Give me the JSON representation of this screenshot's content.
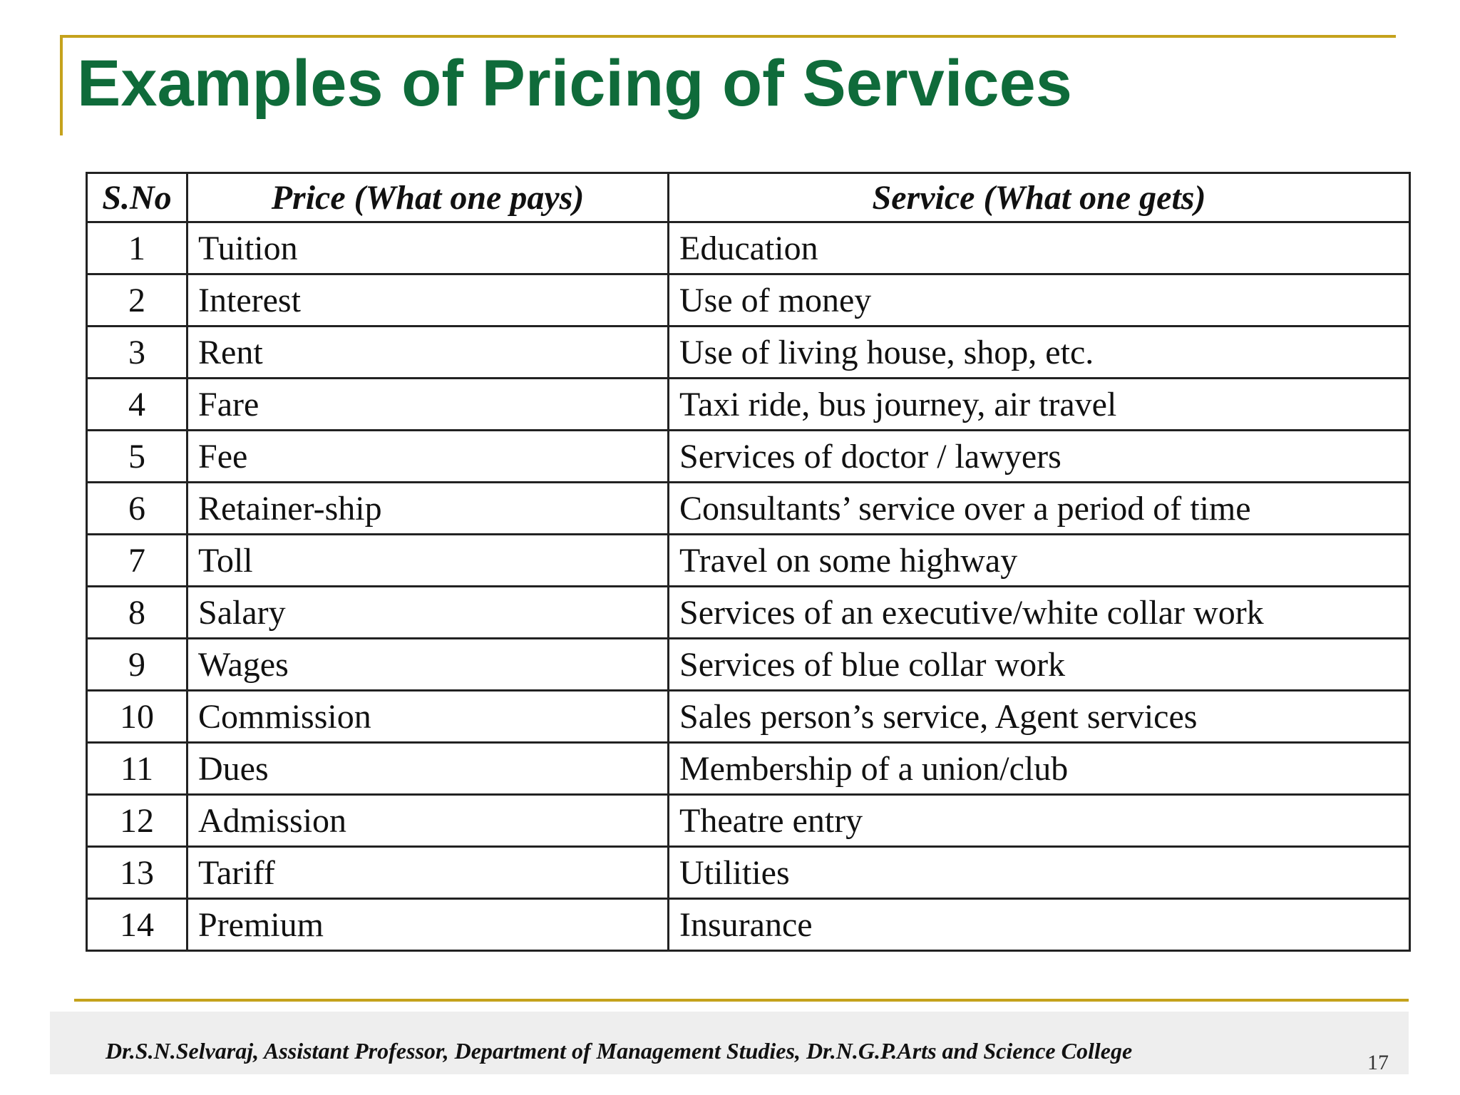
{
  "slide": {
    "title": "Examples of Pricing of Services",
    "footer": "Dr.S.N.Selvaraj, Assistant Professor, Department of Management Studies, Dr.N.G.P.Arts and Science College",
    "page_number": "17"
  },
  "table": {
    "headers": {
      "sno": "S.No",
      "price": "Price (What one pays)",
      "service": "Service (What one gets)"
    },
    "rows": [
      {
        "sno": "1",
        "price": "Tuition",
        "service": "Education"
      },
      {
        "sno": "2",
        "price": "Interest",
        "service": "Use of money"
      },
      {
        "sno": "3",
        "price": "Rent",
        "service": "Use of living house, shop, etc."
      },
      {
        "sno": "4",
        "price": "Fare",
        "service": "Taxi ride, bus journey, air travel"
      },
      {
        "sno": "5",
        "price": "Fee",
        "service": "Services of doctor / lawyers"
      },
      {
        "sno": "6",
        "price": "Retainer-ship",
        "service": "Consultants’ service over a period of time"
      },
      {
        "sno": "7",
        "price": "Toll",
        "service": "Travel on some highway"
      },
      {
        "sno": "8",
        "price": "Salary",
        "service": "Services of an executive/white collar work"
      },
      {
        "sno": "9",
        "price": "Wages",
        "service": "Services of blue collar work"
      },
      {
        "sno": "10",
        "price": "Commission",
        "service": "Sales person’s service, Agent services"
      },
      {
        "sno": "11",
        "price": "Dues",
        "service": "Membership of a union/club"
      },
      {
        "sno": "12",
        "price": "Admission",
        "service": "Theatre entry"
      },
      {
        "sno": "13",
        "price": "Tariff",
        "service": "Utilities"
      },
      {
        "sno": "14",
        "price": "Premium",
        "service": "Insurance"
      }
    ]
  },
  "colors": {
    "title": "#0f6b3a",
    "accent_rule": "#c5a21c",
    "footer_bar": "#eeeeee"
  }
}
